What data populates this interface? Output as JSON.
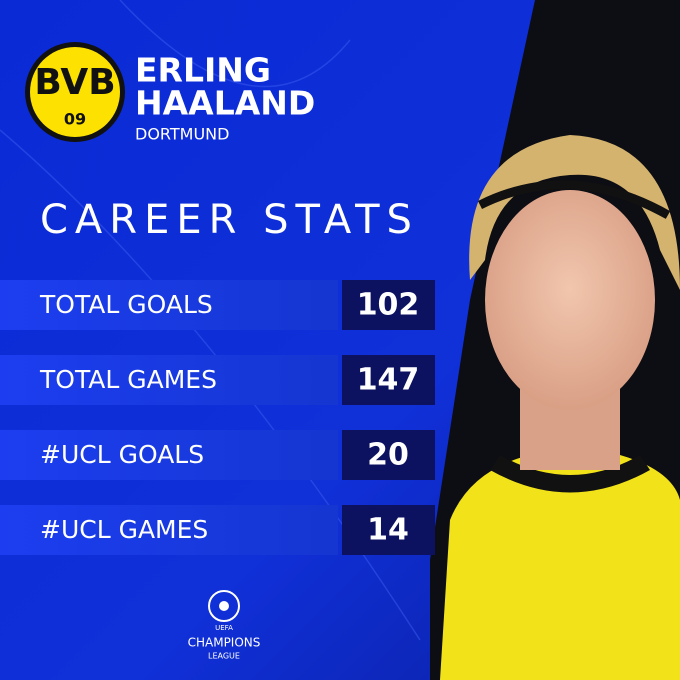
{
  "logo": {
    "text": "BVB",
    "year": "09"
  },
  "header": {
    "first_name": "ERLING",
    "last_name": "HAALAND",
    "club": "DORTMUND"
  },
  "section_title": "CAREER STATS",
  "stats": [
    {
      "label": "TOTAL GOALS",
      "value": "102"
    },
    {
      "label": "TOTAL GAMES",
      "value": "147"
    },
    {
      "label": "#UCL GOALS",
      "value": "20"
    },
    {
      "label": "#UCL GAMES",
      "value": "14"
    }
  ],
  "footer": {
    "line1": "UEFA",
    "line2": "CHAMPIONS",
    "line3": "LEAGUE"
  }
}
